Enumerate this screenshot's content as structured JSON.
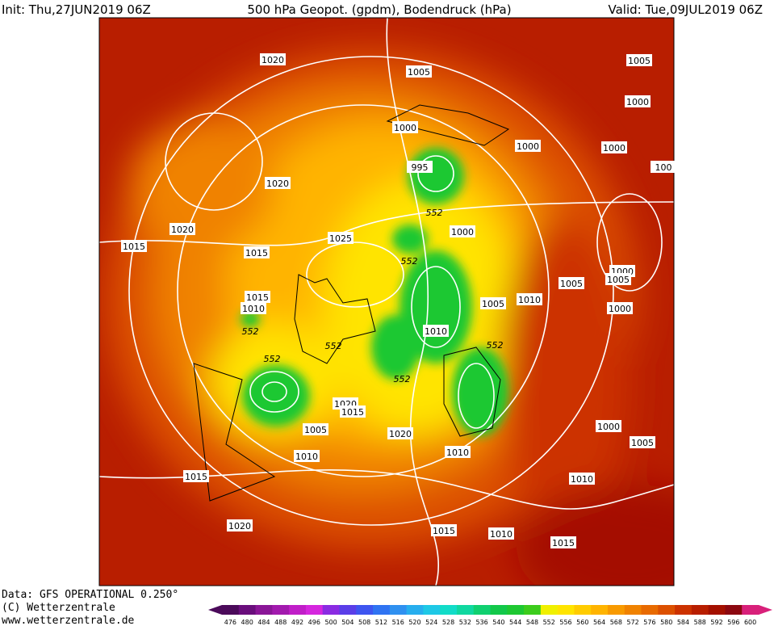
{
  "header": {
    "init": "Init: Thu,27JUN2019 06Z",
    "title": "500 hPa Geopot. (gpdm), Bodendruck (hPa)",
    "valid": "Valid: Tue,09JUL2019 06Z"
  },
  "footer": {
    "data": "Data: GFS OPERATIONAL 0.250°",
    "copyright": "(C) Wetterzentrale",
    "url": "www.wetterzentrale.de"
  },
  "map": {
    "labels": [
      "1020",
      "1005",
      "1005",
      "1000",
      "1000",
      "1000",
      "1000",
      "995",
      "100",
      "1020",
      "552",
      "1020",
      "1000",
      "1015",
      "1025",
      "1015",
      "552",
      "1000",
      "1005",
      "1005",
      "1015",
      "1010",
      "1005",
      "1010",
      "1000",
      "552",
      "1010",
      "552",
      "552",
      "552",
      "552",
      "1020",
      "1015",
      "1005",
      "1000",
      "1020",
      "1005",
      "1010",
      "1010",
      "1015",
      "1010",
      "1020",
      "1015",
      "1010",
      "1015"
    ]
  },
  "colorbar": {
    "labels": [
      476,
      480,
      484,
      488,
      492,
      496,
      500,
      504,
      508,
      512,
      516,
      520,
      524,
      528,
      532,
      536,
      540,
      544,
      548,
      552,
      556,
      560,
      564,
      568,
      572,
      576,
      580,
      584,
      588,
      592,
      596,
      600
    ],
    "colors": [
      "#4b0a5a",
      "#6a0e7c",
      "#8a1697",
      "#a21aae",
      "#c01ec8",
      "#d526de",
      "#8a2be2",
      "#5a3ee8",
      "#3e55f0",
      "#2f73f2",
      "#2f90f0",
      "#27aeee",
      "#1ec8e6",
      "#12dcc8",
      "#10d8a0",
      "#10d070",
      "#12c84a",
      "#1ec832",
      "#3ccc1c",
      "#f0f000",
      "#ffe400",
      "#ffcc00",
      "#ffb400",
      "#f89a00",
      "#f08200",
      "#e86a00",
      "#dc5000",
      "#cc3200",
      "#b81e00",
      "#a41000",
      "#8c0810",
      "#d8207a"
    ]
  }
}
